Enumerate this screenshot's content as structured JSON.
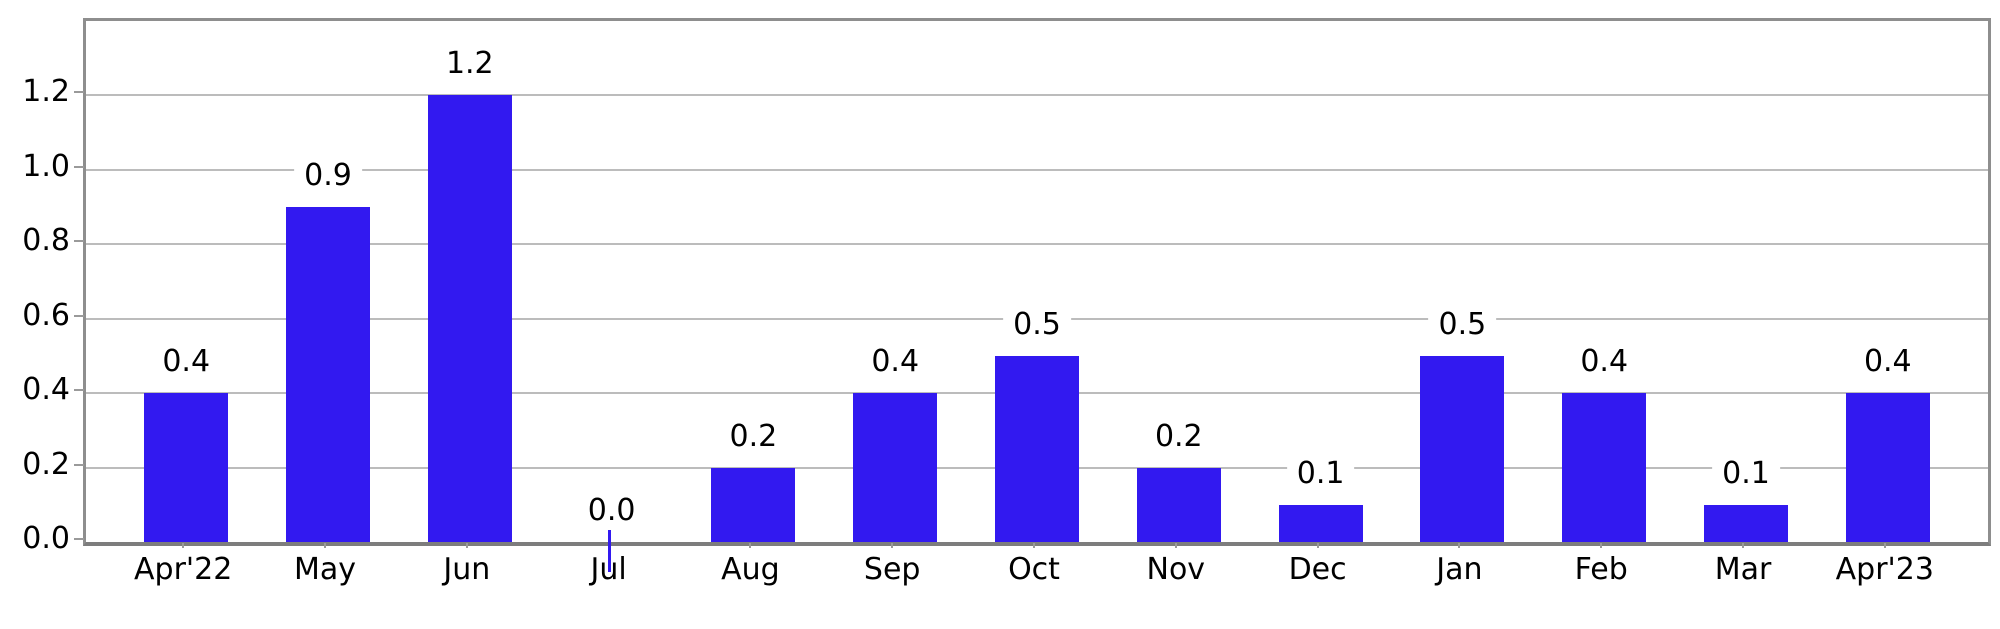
{
  "chart_data": {
    "type": "bar",
    "title": "",
    "xlabel": "",
    "ylabel": "",
    "categories": [
      "Apr'22",
      "May",
      "Jun",
      "Jul",
      "Aug",
      "Sep",
      "Oct",
      "Nov",
      "Dec",
      "Jan",
      "Feb",
      "Mar",
      "Apr'23"
    ],
    "values": [
      0.4,
      0.9,
      1.2,
      0.0,
      0.2,
      0.4,
      0.5,
      0.2,
      0.1,
      0.5,
      0.4,
      0.1,
      0.4
    ],
    "bar_labels": [
      "0.4",
      "0.9",
      "1.2",
      "0.0",
      "0.2",
      "0.4",
      "0.5",
      "0.2",
      "0.1",
      "0.5",
      "0.4",
      "0.1",
      "0.4"
    ],
    "yticks": [
      0.0,
      0.2,
      0.4,
      0.6,
      0.8,
      1.0,
      1.2
    ],
    "ytick_labels": [
      "0.0",
      "0.2",
      "0.4",
      "0.6",
      "0.8",
      "1.0",
      "1.2"
    ],
    "ylim": [
      0,
      1.4
    ],
    "grid": true,
    "legend_position": "none",
    "colors": {
      "bar": "#3219f0",
      "gridline": "#bcbcbc",
      "axis_border": "#8e8e8e",
      "axis_bottom": "#7d7d7d",
      "tick": "#9a9a9a",
      "label_text": "#000000",
      "background": "#ffffff"
    }
  }
}
